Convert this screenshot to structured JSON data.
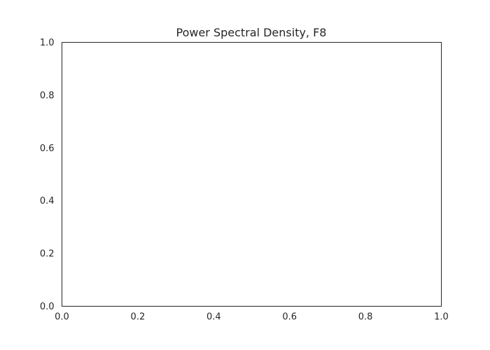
{
  "chart_data": {
    "type": "line",
    "title": "Power Spectral Density, F8",
    "xlabel": "",
    "ylabel": "",
    "xlim": [
      0.0,
      1.0
    ],
    "ylim": [
      0.0,
      1.0
    ],
    "x_ticks": [
      0.0,
      0.2,
      0.4,
      0.6,
      0.8,
      1.0
    ],
    "x_tick_labels": [
      "0.0",
      "0.2",
      "0.4",
      "0.6",
      "0.8",
      "1.0"
    ],
    "y_ticks": [
      0.0,
      0.2,
      0.4,
      0.6,
      0.8,
      1.0
    ],
    "y_tick_labels": [
      "0.0",
      "0.2",
      "0.4",
      "0.6",
      "0.8",
      "1.0"
    ],
    "grid": false,
    "series": []
  },
  "colors": {
    "axes_edge": "#262626",
    "text": "#262626",
    "background": "#ffffff"
  }
}
